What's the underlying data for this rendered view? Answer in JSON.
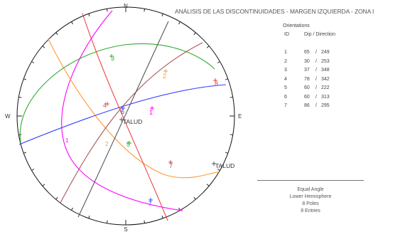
{
  "title": "ANÁLISIS DE LAS DISCONTINUIDADES - MARGEN IZQUIERDA - ZONA I",
  "compass": {
    "n": "N",
    "s": "S",
    "e": "E",
    "w": "W"
  },
  "orientations": {
    "title": "Orientations",
    "col_id": "ID",
    "col_dipdir": "Dip / Direction",
    "rows": [
      {
        "id": "1",
        "dip": "65",
        "dir": "249"
      },
      {
        "id": "2",
        "dip": "30",
        "dir": "253"
      },
      {
        "id": "3",
        "dip": "37",
        "dir": "348"
      },
      {
        "id": "4",
        "dip": "78",
        "dir": "342"
      },
      {
        "id": "5",
        "dip": "60",
        "dir": "222"
      },
      {
        "id": "6",
        "dip": "60",
        "dir": "313"
      },
      {
        "id": "7",
        "dip": "86",
        "dir": "295"
      }
    ]
  },
  "projection_info": {
    "projection": "Equal Angle",
    "hemisphere": "Lower Hemisphere",
    "poles": "8 Poles",
    "entries": "8 Entries"
  },
  "plot": {
    "planes": [
      {
        "id": "1",
        "color": "#ff00ff",
        "label": "1"
      },
      {
        "id": "2",
        "color": "#ff9933",
        "label": "2"
      },
      {
        "id": "3",
        "color": "#33aa33",
        "label": "3"
      },
      {
        "id": "4",
        "color": "#ee4444",
        "label": "4"
      },
      {
        "id": "5",
        "color": "#aa5555",
        "label": "5"
      },
      {
        "id": "6",
        "color": "#3344ff",
        "label": "6"
      },
      {
        "id": "7",
        "color": "#555555",
        "label": "7"
      }
    ],
    "pole_labels": [
      "1",
      "2",
      "3",
      "4",
      "5",
      "6",
      "7",
      "8"
    ],
    "talud_labels": [
      "TALUD",
      "TALUD"
    ]
  }
}
